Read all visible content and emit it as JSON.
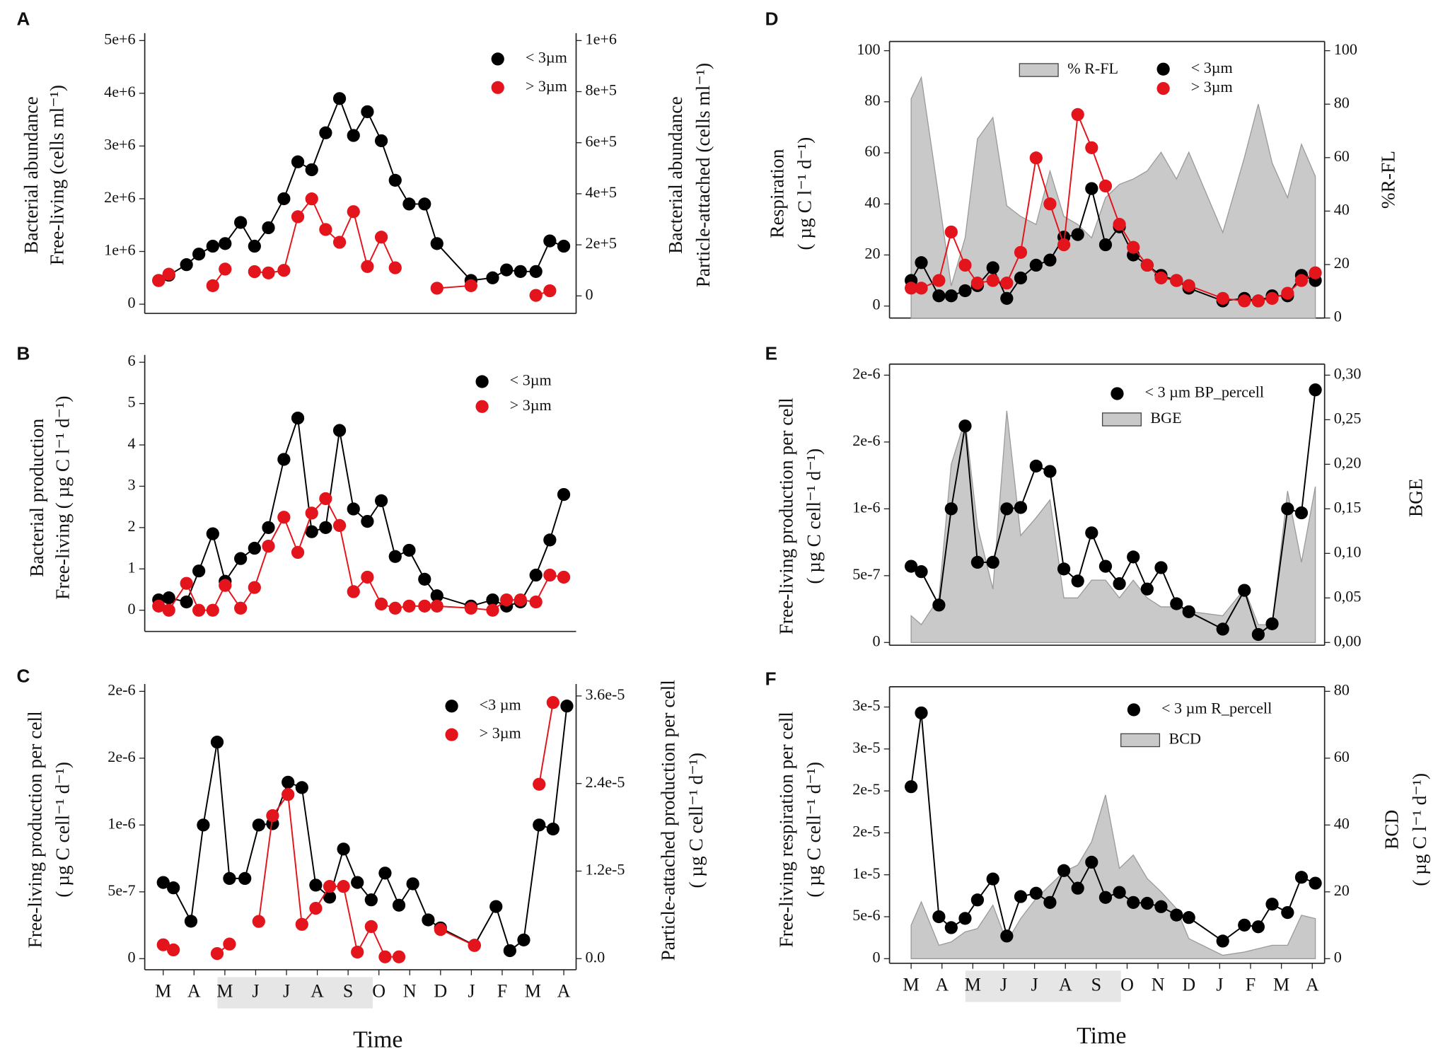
{
  "chart_data": [
    {
      "type": "line",
      "panel": "A",
      "ylabel": [
        "Bacterial abundance",
        "Free-living (cells ml⁻¹)"
      ],
      "y2label": [
        "Bacterial abundance",
        "Particle-attached (cells ml⁻¹)"
      ],
      "x": [
        0,
        0.33,
        0.9,
        1.3,
        1.75,
        2.15,
        2.65,
        3.1,
        3.55,
        4.05,
        4.5,
        4.95,
        5.4,
        5.85,
        6.3,
        6.75,
        7.2,
        7.65,
        8.1,
        8.6,
        9.0,
        10.1,
        10.8,
        11.25,
        11.7,
        12.2,
        12.65,
        13.1
      ],
      "xlim": [
        -0.45,
        13.5
      ],
      "ylim": [
        0,
        5000000
      ],
      "yticks": [
        0,
        {
          "value": 1000000,
          "label": "1e+6"
        },
        {
          "value": 2000000,
          "label": "2e+6"
        },
        {
          "value": 3000000,
          "label": "3e+6"
        },
        {
          "value": 4000000,
          "label": "4e+6"
        },
        {
          "value": 5000000,
          "label": "5e+6"
        }
      ],
      "y2lim": [
        0,
        1000000
      ],
      "y2ticks": [
        0,
        {
          "value": 200000,
          "label": "2e+5"
        },
        {
          "value": 400000,
          "label": "4e+5"
        },
        {
          "value": 600000,
          "label": "6e+5"
        },
        {
          "value": 800000,
          "label": "8e+5"
        },
        {
          "value": 1000000,
          "label": "1e+6"
        }
      ],
      "series": [
        {
          "name": "< 3µm",
          "color": "#000000",
          "values": [
            450000,
            550000,
            750000,
            950000,
            1100000,
            1150000,
            1550000,
            1100000,
            1450000,
            2000000,
            2700000,
            2550000,
            3250000,
            3900000,
            3200000,
            3650000,
            3100000,
            2350000,
            1900000,
            1900000,
            1150000,
            450000,
            500000,
            650000,
            620000,
            620000,
            1200000,
            1100000
          ]
        },
        {
          "name": "> 3µm",
          "color": "#e3141b",
          "axis": "y2",
          "values": [
            60000,
            85000,
            null,
            null,
            40000,
            105000,
            null,
            95000,
            90000,
            100000,
            310000,
            380000,
            260000,
            210000,
            330000,
            115000,
            230000,
            110000,
            null,
            null,
            30000,
            40000,
            null,
            null,
            null,
            2000,
            20000,
            null
          ]
        }
      ]
    },
    {
      "type": "line",
      "panel": "B",
      "ylabel": [
        "Bacterial production",
        "Free-living ( µg C l⁻¹ d⁻¹)"
      ],
      "x": [
        0,
        0.33,
        0.9,
        1.3,
        1.75,
        2.15,
        2.65,
        3.1,
        3.55,
        4.05,
        4.5,
        4.95,
        5.4,
        5.85,
        6.3,
        6.75,
        7.2,
        7.65,
        8.1,
        8.6,
        9.0,
        10.1,
        10.8,
        11.25,
        11.7,
        12.2,
        12.65,
        13.1
      ],
      "xlim": [
        -0.45,
        13.5
      ],
      "ylim": [
        0,
        6
      ],
      "yticks": [
        0,
        1,
        2,
        3,
        4,
        5,
        6
      ],
      "series": [
        {
          "name": "< 3µm",
          "color": "#000000",
          "values": [
            0.25,
            0.3,
            0.2,
            0.95,
            1.85,
            0.7,
            1.25,
            1.5,
            2.0,
            3.65,
            4.65,
            1.9,
            2.0,
            4.35,
            2.45,
            2.15,
            2.65,
            1.3,
            1.45,
            0.75,
            0.35,
            0.1,
            0.25,
            0.1,
            0.2,
            0.85,
            1.7,
            2.8
          ]
        },
        {
          "name": "> 3µm",
          "color": "#e3141b",
          "values": [
            0.1,
            0.0,
            0.65,
            0.0,
            0.0,
            0.6,
            0.05,
            0.55,
            1.55,
            2.25,
            1.4,
            2.35,
            2.7,
            2.05,
            0.45,
            0.8,
            0.15,
            0.05,
            0.1,
            0.1,
            0.1,
            0.05,
            0.0,
            0.25,
            0.25,
            0.2,
            0.85,
            0.8
          ]
        }
      ]
    },
    {
      "type": "line",
      "panel": "C",
      "ylabel": [
        "Free-living production per cell",
        "( µg C cell⁻¹ d⁻¹)"
      ],
      "y2label": [
        "Particle-attached production per cell",
        "( µg C cell⁻¹ d⁻¹)"
      ],
      "xlabel": "Time",
      "x": [
        0,
        0.33,
        0.9,
        1.3,
        1.75,
        2.15,
        2.65,
        3.1,
        3.55,
        4.05,
        4.5,
        4.95,
        5.4,
        5.85,
        6.3,
        6.75,
        7.2,
        7.65,
        8.1,
        8.6,
        9.0,
        10.1,
        10.8,
        11.25,
        11.7,
        12.2,
        12.65,
        13.1
      ],
      "xlim": [
        -0.6,
        13.4
      ],
      "xticks": [
        {
          "value": 0,
          "label": "M"
        },
        {
          "value": 1,
          "label": "A"
        },
        {
          "value": 2,
          "label": "M"
        },
        {
          "value": 3,
          "label": "J"
        },
        {
          "value": 4,
          "label": "J"
        },
        {
          "value": 5,
          "label": "A"
        },
        {
          "value": 6,
          "label": "S"
        },
        {
          "value": 7,
          "label": "O"
        },
        {
          "value": 8,
          "label": "N"
        },
        {
          "value": 9,
          "label": "D"
        },
        {
          "value": 10,
          "label": "J"
        },
        {
          "value": 11,
          "label": "F"
        },
        {
          "value": 12,
          "label": "M"
        },
        {
          "value": 13,
          "label": "A"
        }
      ],
      "ylim": [
        0,
        2e-06
      ],
      "yticks": [
        0,
        {
          "value": 5e-07,
          "label": "5e-7"
        },
        {
          "value": 1e-06,
          "label": "1e-6"
        },
        {
          "value": 1.5e-06,
          "label": "2e-6"
        },
        {
          "value": 2e-06,
          "label": "2e-6"
        }
      ],
      "y2lim": [
        0,
        3.6e-05
      ],
      "y2ticks": [
        {
          "value": 0,
          "label": "0.0"
        },
        {
          "value": 1.2e-05,
          "label": "1.2e-5"
        },
        {
          "value": 2.4e-05,
          "label": "2.4e-5"
        },
        {
          "value": 3.6e-05,
          "label": "3.6e-5"
        }
      ],
      "series": [
        {
          "name": "<3 µm",
          "color": "#000000",
          "values": [
            5.7e-07,
            5.3e-07,
            2.8e-07,
            1e-06,
            1.62e-06,
            6e-07,
            6e-07,
            1e-06,
            1.01e-06,
            1.32e-06,
            1.28e-06,
            5.5e-07,
            4.6e-07,
            8.2e-07,
            5.7e-07,
            4.4e-07,
            6.4e-07,
            4e-07,
            5.6e-07,
            2.9e-07,
            2.3e-07,
            1e-07,
            3.9e-07,
            6e-08,
            1.4e-07,
            1e-06,
            9.7e-07,
            1.89e-06
          ]
        },
        {
          "name": "> 3µm",
          "color": "#e3141b",
          "axis": "y2",
          "values": [
            1.9e-06,
            1.2e-06,
            null,
            null,
            7e-07,
            2e-06,
            null,
            5.1e-06,
            1.96e-05,
            2.25e-05,
            4.7e-06,
            6.9e-06,
            9.9e-06,
            9.9e-06,
            9e-07,
            4.4e-06,
            2.5e-07,
            2.5e-07,
            null,
            null,
            4e-06,
            1.8e-06,
            null,
            null,
            null,
            2.39e-05,
            3.51e-05,
            null
          ]
        }
      ]
    },
    {
      "type": "line",
      "panel": "D",
      "ylabel": [
        "Respiration",
        "( µg C l⁻¹ d⁻¹)"
      ],
      "y2label": [
        "%R-FL"
      ],
      "x": [
        0,
        0.33,
        0.9,
        1.3,
        1.75,
        2.15,
        2.65,
        3.1,
        3.55,
        4.05,
        4.5,
        4.95,
        5.4,
        5.85,
        6.3,
        6.75,
        7.2,
        7.65,
        8.1,
        8.6,
        9.0,
        10.1,
        10.8,
        11.25,
        11.7,
        12.2,
        12.65,
        13.1
      ],
      "xlim": [
        -0.7,
        13.4
      ],
      "ylim": [
        0,
        100
      ],
      "yticks": [
        0,
        20,
        40,
        60,
        80,
        100
      ],
      "y2lim": [
        0,
        100
      ],
      "y2ticks": [
        0,
        20,
        40,
        60,
        80,
        100
      ],
      "series": [
        {
          "name": "% R-FL",
          "type": "area",
          "color": "#c9c9c9",
          "axis": "y2",
          "values": [
            82,
            90,
            45,
            12,
            30,
            67,
            75,
            42,
            38,
            35,
            55,
            38,
            35,
            30,
            45,
            50,
            52,
            55,
            62,
            52,
            62,
            32,
            60,
            80,
            58,
            45,
            65,
            53
          ]
        },
        {
          "name": "< 3µm",
          "color": "#000000",
          "values": [
            10,
            17,
            4,
            4,
            6,
            8,
            15,
            3,
            11,
            16,
            18,
            27,
            28,
            46,
            24,
            31,
            20,
            16,
            12,
            10,
            7,
            2,
            3,
            2,
            4,
            4,
            12,
            10
          ]
        },
        {
          "name": "> 3µm",
          "color": "#e3141b",
          "values": [
            7,
            7,
            10,
            29,
            16,
            9,
            10,
            9,
            21,
            58,
            40,
            24,
            75,
            62,
            47,
            32,
            23,
            16,
            11,
            10,
            8,
            3,
            2,
            2,
            3,
            5,
            10,
            13
          ]
        }
      ]
    },
    {
      "type": "line",
      "panel": "E",
      "ylabel": [
        "Free-living production per cell",
        "( µg C cell⁻¹ d⁻¹)"
      ],
      "y2label": [
        "BGE"
      ],
      "x": [
        0,
        0.33,
        0.9,
        1.3,
        1.75,
        2.15,
        2.65,
        3.1,
        3.55,
        4.05,
        4.5,
        4.95,
        5.4,
        5.85,
        6.3,
        6.75,
        7.2,
        7.65,
        8.1,
        8.6,
        9.0,
        10.1,
        10.8,
        11.25,
        11.7,
        12.2,
        12.65,
        13.1
      ],
      "xlim": [
        -0.7,
        13.4
      ],
      "ylim": [
        0,
        2e-06
      ],
      "yticks": [
        0,
        {
          "value": 5e-07,
          "label": "5e-7"
        },
        {
          "value": 1e-06,
          "label": "1e-6"
        },
        {
          "value": 1.5e-06,
          "label": "2e-6"
        },
        {
          "value": 2e-06,
          "label": "2e-6"
        }
      ],
      "y2lim": [
        0,
        0.3
      ],
      "y2ticks": [
        {
          "value": 0,
          "label": "0,00"
        },
        {
          "value": 0.05,
          "label": "0,05"
        },
        {
          "value": 0.1,
          "label": "0,10"
        },
        {
          "value": 0.15,
          "label": "0,15"
        },
        {
          "value": 0.2,
          "label": "0,20"
        },
        {
          "value": 0.25,
          "label": "0,25"
        },
        {
          "value": 0.3,
          "label": "0,30"
        }
      ],
      "series": [
        {
          "name": "BGE",
          "type": "area",
          "color": "#c9c9c9",
          "axis": "y2",
          "values": [
            0.03,
            0.02,
            0.05,
            0.2,
            0.25,
            0.13,
            0.06,
            0.26,
            0.12,
            0.14,
            0.16,
            0.05,
            0.05,
            0.07,
            0.07,
            0.05,
            0.07,
            0.05,
            0.04,
            0.04,
            0.035,
            0.03,
            0.06,
            0.02,
            0.02,
            0.17,
            0.09,
            0.175
          ]
        },
        {
          "name": "< 3 µm BP_percell",
          "color": "#000000",
          "values": [
            5.7e-07,
            5.3e-07,
            2.8e-07,
            1e-06,
            1.62e-06,
            6e-07,
            6e-07,
            1e-06,
            1.01e-06,
            1.32e-06,
            1.28e-06,
            5.5e-07,
            4.6e-07,
            8.2e-07,
            5.7e-07,
            4.4e-07,
            6.4e-07,
            4e-07,
            5.6e-07,
            2.9e-07,
            2.3e-07,
            1e-07,
            3.9e-07,
            6e-08,
            1.4e-07,
            1e-06,
            9.7e-07,
            1.89e-06
          ]
        }
      ]
    },
    {
      "type": "line",
      "panel": "F",
      "ylabel": [
        "Free-living respiration per cell",
        "( µg C cell⁻¹ d⁻¹)"
      ],
      "y2label": [
        "BCD",
        "( µg C l⁻¹ d⁻¹)"
      ],
      "xlabel": "Time",
      "x": [
        0,
        0.33,
        0.9,
        1.3,
        1.75,
        2.15,
        2.65,
        3.1,
        3.55,
        4.05,
        4.5,
        4.95,
        5.4,
        5.85,
        6.3,
        6.75,
        7.2,
        7.65,
        8.1,
        8.6,
        9.0,
        10.1,
        10.8,
        11.25,
        11.7,
        12.2,
        12.65,
        13.1
      ],
      "xlim": [
        -0.7,
        13.4
      ],
      "xticks": [
        {
          "value": 0,
          "label": "M"
        },
        {
          "value": 1,
          "label": "A"
        },
        {
          "value": 2,
          "label": "M"
        },
        {
          "value": 3,
          "label": "J"
        },
        {
          "value": 4,
          "label": "J"
        },
        {
          "value": 5,
          "label": "A"
        },
        {
          "value": 6,
          "label": "S"
        },
        {
          "value": 7,
          "label": "O"
        },
        {
          "value": 8,
          "label": "N"
        },
        {
          "value": 9,
          "label": "D"
        },
        {
          "value": 10,
          "label": "J"
        },
        {
          "value": 11,
          "label": "F"
        },
        {
          "value": 12,
          "label": "M"
        },
        {
          "value": 13,
          "label": "A"
        }
      ],
      "ylim": [
        0,
        3e-05
      ],
      "yticks": [
        0,
        {
          "value": 5e-06,
          "label": "5e-6"
        },
        {
          "value": 1e-05,
          "label": "1e-5"
        },
        {
          "value": 1.5e-05,
          "label": "2e-5"
        },
        {
          "value": 2e-05,
          "label": "2e-5"
        },
        {
          "value": 2.5e-05,
          "label": "3e-5"
        },
        {
          "value": 3e-05,
          "label": "3e-5"
        }
      ],
      "y2lim": [
        0,
        80
      ],
      "y2ticks": [
        0,
        20,
        40,
        60,
        80
      ],
      "series": [
        {
          "name": "BCD",
          "type": "area",
          "color": "#c9c9c9",
          "axis": "y2",
          "values": [
            10,
            17,
            4,
            5,
            8,
            9,
            16,
            5,
            12,
            18,
            22,
            26,
            28,
            35,
            49,
            27,
            31,
            24,
            20,
            15,
            6,
            1,
            2,
            3,
            4,
            4,
            13,
            12
          ]
        },
        {
          "name": "< 3 µm R_percell",
          "color": "#000000",
          "values": [
            2.05e-05,
            2.93e-05,
            5e-06,
            3.7e-06,
            4.8e-06,
            7e-06,
            9.5e-06,
            2.7e-06,
            7.4e-06,
            7.8e-06,
            6.7e-06,
            1.05e-05,
            8.4e-06,
            1.15e-05,
            7.3e-06,
            7.9e-06,
            6.7e-06,
            6.6e-06,
            6.2e-06,
            5.2e-06,
            4.9e-06,
            2.1e-06,
            4e-06,
            3.8e-06,
            6.5e-06,
            5.5e-06,
            9.7e-06,
            9e-06
          ]
        }
      ]
    }
  ]
}
